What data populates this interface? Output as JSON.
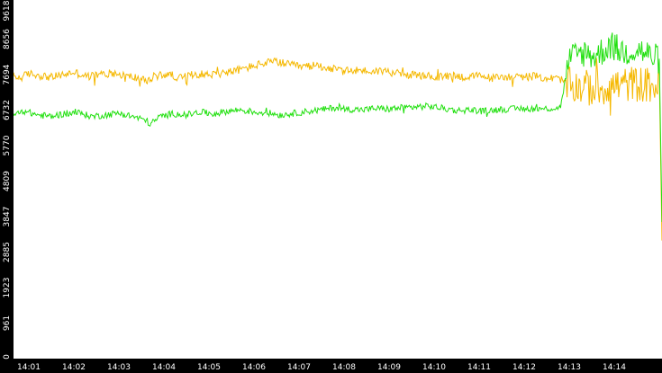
{
  "chart_data": {
    "type": "line",
    "title": "",
    "xlabel": "",
    "ylabel": "",
    "ylim": [
      0,
      9618
    ],
    "y_ticks": [
      0,
      961,
      1923,
      2885,
      3847,
      4809,
      5770,
      6732,
      7694,
      8656,
      9618
    ],
    "x_ticks": [
      "14:01",
      "14:02",
      "14:03",
      "14:04",
      "14:05",
      "14:06",
      "14:07",
      "14:08",
      "14:09",
      "14:10",
      "14:11",
      "14:12",
      "14:13",
      "14:14"
    ],
    "x_range_minutes": [
      0.66,
      15.06
    ],
    "grid": false,
    "legend": "none",
    "background": "#ffffff",
    "axis_background": "#000000",
    "axis_text_color": "#ffffff",
    "series": [
      {
        "color": "#f5b800",
        "noise": 110,
        "points": [
          [
            0.66,
            7650
          ],
          [
            0.8,
            7600
          ],
          [
            1.0,
            7720
          ],
          [
            1.2,
            7680
          ],
          [
            1.5,
            7620
          ],
          [
            1.8,
            7700
          ],
          [
            2.0,
            7760
          ],
          [
            2.3,
            7640
          ],
          [
            2.6,
            7700
          ],
          [
            2.9,
            7740
          ],
          [
            3.2,
            7650
          ],
          [
            3.5,
            7590
          ],
          [
            3.6,
            7480
          ],
          [
            3.8,
            7660
          ],
          [
            4.1,
            7700
          ],
          [
            4.4,
            7600
          ],
          [
            4.7,
            7720
          ],
          [
            5.0,
            7690
          ],
          [
            5.3,
            7740
          ],
          [
            5.6,
            7800
          ],
          [
            5.9,
            7900
          ],
          [
            6.2,
            8000
          ],
          [
            6.5,
            8050
          ],
          [
            6.8,
            7950
          ],
          [
            7.1,
            7900
          ],
          [
            7.4,
            7950
          ],
          [
            7.7,
            7860
          ],
          [
            8.0,
            7780
          ],
          [
            8.3,
            7820
          ],
          [
            8.6,
            7780
          ],
          [
            8.9,
            7800
          ],
          [
            9.2,
            7720
          ],
          [
            9.5,
            7680
          ],
          [
            9.8,
            7660
          ],
          [
            10.1,
            7620
          ],
          [
            10.4,
            7680
          ],
          [
            10.7,
            7620
          ],
          [
            11.0,
            7660
          ],
          [
            11.3,
            7600
          ],
          [
            11.6,
            7640
          ],
          [
            11.9,
            7620
          ],
          [
            12.2,
            7650
          ],
          [
            12.5,
            7600
          ],
          [
            12.8,
            7580
          ],
          [
            13.0,
            7400
          ],
          [
            13.3,
            7350
          ],
          [
            13.6,
            7300
          ],
          [
            13.9,
            7380
          ],
          [
            14.2,
            7420
          ],
          [
            14.5,
            7450
          ],
          [
            14.8,
            7400
          ],
          [
            15.0,
            7380
          ],
          [
            15.06,
            3200
          ]
        ]
      },
      {
        "color": "#22e010",
        "noise": 90,
        "points": [
          [
            0.66,
            6600
          ],
          [
            0.9,
            6700
          ],
          [
            1.2,
            6600
          ],
          [
            1.5,
            6560
          ],
          [
            1.8,
            6640
          ],
          [
            2.1,
            6660
          ],
          [
            2.4,
            6560
          ],
          [
            2.7,
            6600
          ],
          [
            3.0,
            6650
          ],
          [
            3.3,
            6560
          ],
          [
            3.6,
            6460
          ],
          [
            3.7,
            6350
          ],
          [
            3.9,
            6550
          ],
          [
            4.2,
            6640
          ],
          [
            4.5,
            6600
          ],
          [
            4.8,
            6680
          ],
          [
            5.1,
            6630
          ],
          [
            5.4,
            6700
          ],
          [
            5.7,
            6740
          ],
          [
            6.0,
            6680
          ],
          [
            6.3,
            6660
          ],
          [
            6.6,
            6600
          ],
          [
            6.9,
            6650
          ],
          [
            7.2,
            6700
          ],
          [
            7.5,
            6740
          ],
          [
            7.8,
            6800
          ],
          [
            8.1,
            6760
          ],
          [
            8.4,
            6740
          ],
          [
            8.7,
            6780
          ],
          [
            9.0,
            6760
          ],
          [
            9.3,
            6800
          ],
          [
            9.6,
            6820
          ],
          [
            9.9,
            6840
          ],
          [
            10.2,
            6780
          ],
          [
            10.5,
            6720
          ],
          [
            10.8,
            6740
          ],
          [
            11.1,
            6700
          ],
          [
            11.4,
            6750
          ],
          [
            11.7,
            6760
          ],
          [
            12.0,
            6780
          ],
          [
            12.3,
            6760
          ],
          [
            12.6,
            6780
          ],
          [
            12.8,
            6800
          ],
          [
            13.0,
            8100
          ],
          [
            13.3,
            8300
          ],
          [
            13.6,
            8200
          ],
          [
            13.9,
            8500
          ],
          [
            14.2,
            8300
          ],
          [
            14.5,
            8400
          ],
          [
            14.8,
            8200
          ],
          [
            15.0,
            8100
          ],
          [
            15.06,
            3700
          ]
        ]
      }
    ]
  }
}
